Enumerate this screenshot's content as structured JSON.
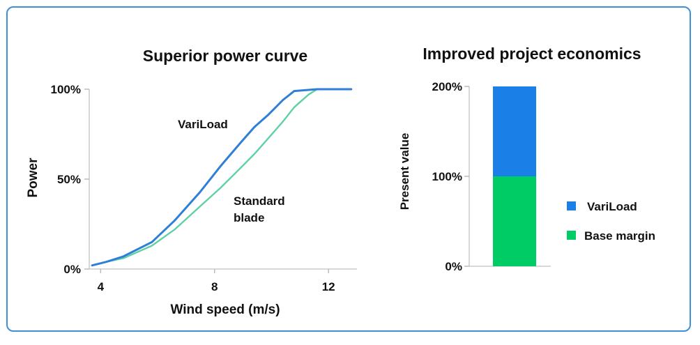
{
  "chart_data": [
    {
      "type": "line",
      "title": "Superior power curve",
      "xlabel": "Wind speed (m/s)",
      "ylabel": "Power",
      "xlim": [
        3.6,
        13.0
      ],
      "ylim": [
        0,
        100
      ],
      "x_ticks": [
        "4",
        "8",
        "12"
      ],
      "y_ticks": [
        "0%",
        "50%",
        "100%"
      ],
      "grid": false,
      "series": [
        {
          "name": "VariLoad",
          "color": "#2f7fd8",
          "x": [
            3.7,
            4.2,
            4.8,
            5.8,
            6.6,
            7.5,
            8.2,
            8.9,
            9.4,
            9.9,
            10.4,
            10.8,
            11.6,
            12.8
          ],
          "y": [
            2,
            4,
            7,
            15,
            27,
            43,
            57,
            70,
            79,
            86,
            94,
            99,
            100,
            100
          ]
        },
        {
          "name": "Standard blade",
          "color": "#5fd1a2",
          "x": [
            3.7,
            4.2,
            4.8,
            5.8,
            6.6,
            7.5,
            8.2,
            8.9,
            9.4,
            9.9,
            10.4,
            10.8,
            11.3,
            11.6,
            12.8
          ],
          "y": [
            2,
            4,
            6,
            13,
            22,
            35,
            45,
            56,
            64,
            73,
            82,
            90,
            97,
            100,
            100
          ]
        }
      ]
    },
    {
      "type": "bar",
      "stacked": true,
      "title": "Improved project economics",
      "xlabel": "",
      "ylabel": "Present value",
      "ylim": [
        0,
        200
      ],
      "y_ticks": [
        "0%",
        "100%",
        "200%"
      ],
      "legend_position": "right",
      "categories": [
        ""
      ],
      "series": [
        {
          "name": "Base margin",
          "values": [
            100
          ],
          "color": "#00cc66"
        },
        {
          "name": "VariLoad",
          "values": [
            100
          ],
          "color": "#1a7fe6"
        }
      ],
      "legend": [
        {
          "label": "VariLoad",
          "color": "#1a7fe6"
        },
        {
          "label": "Base margin",
          "color": "#00cc66"
        }
      ]
    }
  ],
  "labels": {
    "left_title": "Superior power curve",
    "right_title": "Improved project economics",
    "left_xlabel": "Wind speed (m/s)",
    "left_ylabel": "Power",
    "right_ylabel": "Present value",
    "annot_variload": "VariLoad",
    "annot_standard_1": "Standard",
    "annot_standard_2": "blade",
    "legend_variload": "VariLoad",
    "legend_base": "Base margin"
  }
}
